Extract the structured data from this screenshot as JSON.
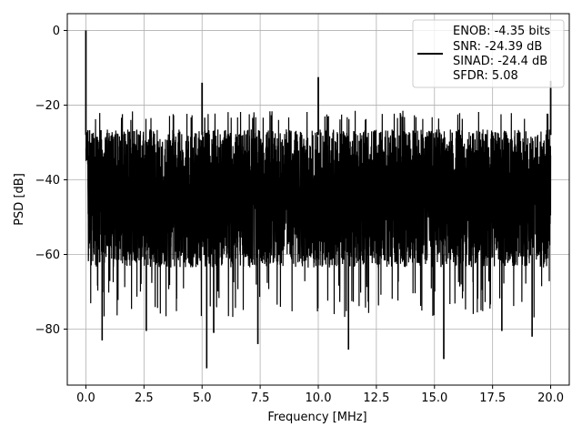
{
  "chart_data": {
    "type": "line",
    "title": "",
    "xlabel": "Frequency [MHz]",
    "ylabel": "PSD [dB]",
    "xlim": [
      -0.8,
      20.8
    ],
    "ylim": [
      -95,
      4.5
    ],
    "xticks": [
      0.0,
      2.5,
      5.0,
      7.5,
      10.0,
      12.5,
      15.0,
      17.5,
      20.0
    ],
    "xtick_labels": [
      "0.0",
      "2.5",
      "5.0",
      "7.5",
      "10.0",
      "12.5",
      "15.0",
      "17.5",
      "20.0"
    ],
    "yticks": [
      0,
      -20,
      -40,
      -60,
      -80
    ],
    "ytick_labels": [
      "0",
      "−20",
      "−40",
      "−60",
      "−80"
    ],
    "grid": true,
    "legend_position": "top-right",
    "series": [
      {
        "color": "#000000",
        "noise_band_db": [
          -65,
          -25
        ],
        "peaks": [
          {
            "x": 0.0,
            "y": 0.0
          },
          {
            "x": 5.0,
            "y": -14.0
          },
          {
            "x": 10.0,
            "y": -12.5
          },
          {
            "x": 20.0,
            "y": -13.5
          }
        ],
        "deep_dips": [
          {
            "x": 0.7,
            "y": -83.0
          },
          {
            "x": 2.6,
            "y": -80.5
          },
          {
            "x": 5.2,
            "y": -90.5
          },
          {
            "x": 5.5,
            "y": -81.0
          },
          {
            "x": 7.4,
            "y": -84.0
          },
          {
            "x": 11.3,
            "y": -85.5
          },
          {
            "x": 15.4,
            "y": -88.0
          },
          {
            "x": 17.9,
            "y": -80.5
          },
          {
            "x": 19.2,
            "y": -82.0
          }
        ]
      }
    ],
    "legend_lines": [
      "ENOB: -4.35 bits",
      "SNR: -24.39 dB",
      "SINAD: -24.4 dB",
      "SFDR: 5.08"
    ]
  }
}
